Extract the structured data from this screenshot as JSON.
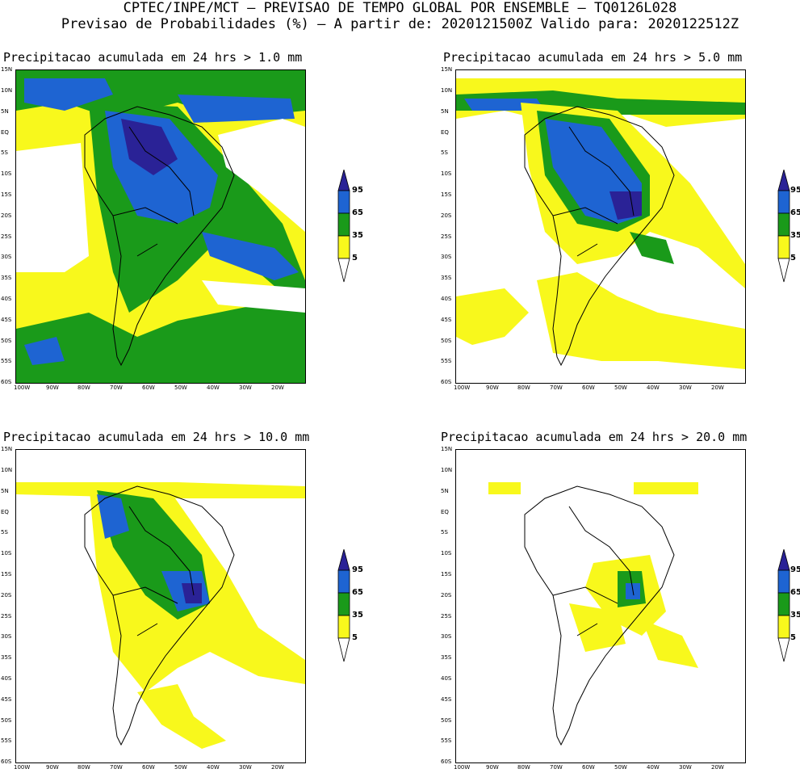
{
  "header": {
    "line1": "CPTEC/INPE/MCT — PREVISAO DE TEMPO GLOBAL POR ENSEMBLE — TQ0126L028",
    "line2": "Previsao de Probabilidades (%) —  A partir de: 2020121500Z  Valido para: 2020122512Z"
  },
  "panels": [
    {
      "title": "Precipitacao acumulada em 24 hrs > 1.0 mm",
      "threshold_mm": 1.0
    },
    {
      "title": "Precipitacao acumulada em 24 hrs > 5.0 mm",
      "threshold_mm": 5.0
    },
    {
      "title": "Precipitacao acumulada em 24 hrs > 10.0 mm",
      "threshold_mm": 10.0
    },
    {
      "title": "Precipitacao acumulada em 24 hrs > 20.0 mm",
      "threshold_mm": 20.0
    }
  ],
  "axes": {
    "lat_labels": [
      "15N",
      "10N",
      "5N",
      "EQ",
      "5S",
      "10S",
      "15S",
      "20S",
      "25S",
      "30S",
      "35S",
      "40S",
      "45S",
      "50S",
      "55S",
      "60S"
    ],
    "lon_labels": [
      "100W",
      "90W",
      "80W",
      "70W",
      "60W",
      "50W",
      "40W",
      "30W",
      "20W"
    ]
  },
  "colorbar": {
    "labels": [
      "95",
      "65",
      "35",
      "5"
    ],
    "colors": {
      "top": "#2a2296",
      "high": "#1e64d2",
      "mid": "#1a9a1a",
      "low": "#f8f81c",
      "bottom": "#ffffff"
    }
  }
}
